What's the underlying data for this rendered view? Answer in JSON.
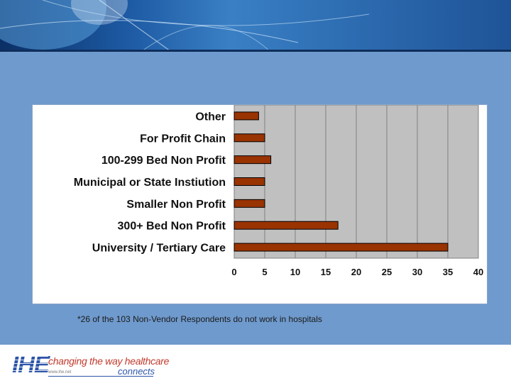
{
  "chart_data": {
    "type": "bar",
    "orientation": "horizontal",
    "categories": [
      "Other",
      "For Profit Chain",
      "100-299 Bed Non Profit",
      "Municipal or State Instiution",
      "Smaller Non Profit",
      "300+ Bed Non Profit",
      "University / Tertiary Care"
    ],
    "values": [
      4,
      5,
      6,
      5,
      5,
      17,
      35
    ],
    "xlim": [
      0,
      40
    ],
    "xticks": [
      0,
      5,
      10,
      15,
      20,
      25,
      30,
      35,
      40
    ],
    "grid": true,
    "bar_color": "#993300",
    "plot_background": "#c0c0c0",
    "title": "",
    "xlabel": "",
    "ylabel": ""
  },
  "footnote": "*26 of the 103 Non-Vendor Respondents do not work in hospitals",
  "footer": {
    "logo_text": "IHE",
    "logo_url": "www.ihe.net",
    "tagline": "changing the way healthcare",
    "connects": "connects"
  },
  "colors": {
    "background": "#6f9acd",
    "banner": "#1d5aa3",
    "tagline": "#c23a2c",
    "brand_blue": "#2c55a8"
  }
}
